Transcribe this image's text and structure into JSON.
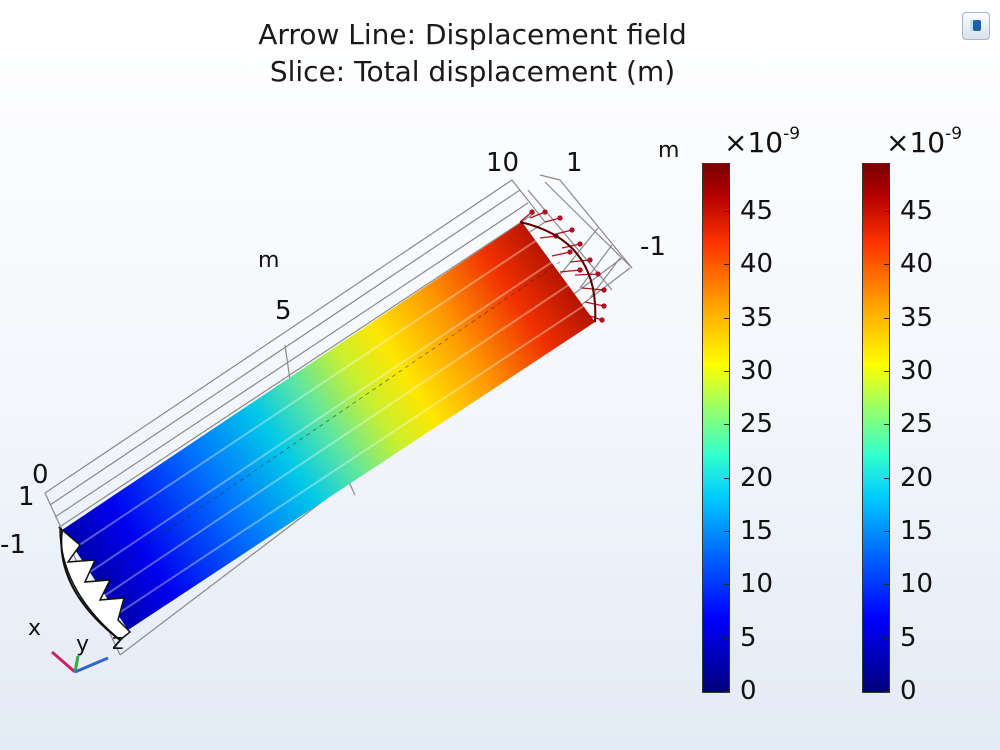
{
  "title": {
    "line1": "Arrow Line: Displacement field",
    "line2": "Slice: Total displacement (m)"
  },
  "toolbar": {
    "export_icon": "image-export-icon"
  },
  "axes": {
    "y_axis_unit": "m",
    "y_ticks": [
      "0",
      "5",
      "10"
    ],
    "z_axis_unit": "m",
    "top_ticks": [
      "1",
      "-1"
    ],
    "left_ticks": [
      "0",
      "1",
      "-1"
    ]
  },
  "triad": {
    "x": "x",
    "y": "y",
    "z": "z"
  },
  "colorbars": [
    {
      "multiplier_base": "×10",
      "multiplier_exp": "-9",
      "ticks": [
        "45",
        "40",
        "35",
        "30",
        "25",
        "20",
        "15",
        "10",
        "5",
        "0"
      ],
      "min": 0,
      "max": 49.5
    },
    {
      "multiplier_base": "×10",
      "multiplier_exp": "-9",
      "ticks": [
        "45",
        "40",
        "35",
        "30",
        "25",
        "20",
        "15",
        "10",
        "5",
        "0"
      ],
      "min": 0,
      "max": 49.5
    }
  ],
  "colors": {
    "low": "#00007a",
    "mid": "#ffff00",
    "high": "#7a0000",
    "arrow": "#b01020"
  }
}
